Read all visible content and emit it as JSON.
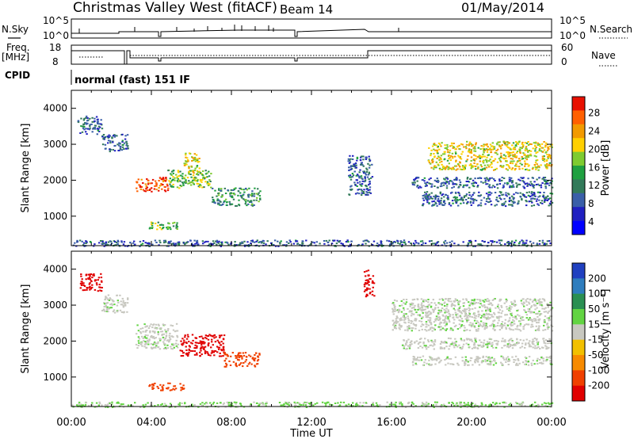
{
  "header": {
    "station": "Christmas Valley West (fitACF)",
    "beam": "Beam 14",
    "date": "01/May/2014"
  },
  "summary_labels": {
    "nsky": "N.Sky",
    "nsearch": "N.Search",
    "freq_line1": "Freq.",
    "freq_line2": "[MHz]",
    "nave": "Nave",
    "cpid": "CPID",
    "cpid_value": "normal (fast) 151 IF",
    "nsky_ticks": [
      "10^5",
      "10^0"
    ],
    "nsearch_ticks": [
      "10^5",
      "10^0"
    ],
    "freq_ticks": [
      "18",
      "8"
    ],
    "nave_ticks": [
      "60",
      "0"
    ]
  },
  "chart_data": [
    {
      "type": "heatmap",
      "name": "power",
      "xlabel": "",
      "ylabel": "Slant Range [km]",
      "x_ticks": [
        "00:00",
        "04:00",
        "08:00",
        "12:00",
        "16:00",
        "20:00",
        "00:00"
      ],
      "y_ticks": [
        "1000",
        "2000",
        "3000",
        "4000"
      ],
      "ylim": [
        180,
        4500
      ],
      "colorbar_label": "Power [dB]",
      "colorbar_ticks": [
        "28",
        "24",
        "20",
        "16",
        "12",
        "8",
        "4"
      ],
      "colorbar_colors": [
        "#e81000",
        "#ff6000",
        "#f29a00",
        "#ffd000",
        "#7ecb30",
        "#1fa040",
        "#327a5a",
        "#3a5fa8",
        "#2020c0",
        "#0000ff"
      ],
      "regions": [
        {
          "t0": 0.3,
          "t1": 1.5,
          "r0": 3300,
          "r1": 3800,
          "level": 8
        },
        {
          "t0": 1.5,
          "t1": 2.8,
          "r0": 2800,
          "r1": 3300,
          "level": 8
        },
        {
          "t0": 3.2,
          "t1": 4.8,
          "r0": 1700,
          "r1": 2100,
          "level": 28
        },
        {
          "t0": 4.8,
          "t1": 7.0,
          "r0": 1800,
          "r1": 2300,
          "level": 16
        },
        {
          "t0": 5.6,
          "t1": 6.4,
          "r0": 2200,
          "r1": 2800,
          "level": 20
        },
        {
          "t0": 7.0,
          "t1": 9.4,
          "r0": 1300,
          "r1": 1800,
          "level": 12
        },
        {
          "t0": 3.8,
          "t1": 5.3,
          "r0": 650,
          "r1": 850,
          "level": 16
        },
        {
          "t0": 13.8,
          "t1": 15.0,
          "r0": 1600,
          "r1": 2700,
          "level": 8
        },
        {
          "t0": 17.8,
          "t1": 24.0,
          "r0": 2300,
          "r1": 3100,
          "level": 20
        },
        {
          "t0": 17.0,
          "t1": 24.0,
          "r0": 1800,
          "r1": 2100,
          "level": 8
        },
        {
          "t0": 17.5,
          "t1": 24.0,
          "r0": 1300,
          "r1": 1700,
          "level": 8
        },
        {
          "t0": 0.0,
          "t1": 24.0,
          "r0": 180,
          "r1": 350,
          "level": 8
        }
      ]
    },
    {
      "type": "heatmap",
      "name": "velocity",
      "xlabel": "Time UT",
      "ylabel": "Slant Range [km]",
      "x_ticks": [
        "00:00",
        "04:00",
        "08:00",
        "12:00",
        "16:00",
        "20:00",
        "00:00"
      ],
      "y_ticks": [
        "1000",
        "2000",
        "3000",
        "4000"
      ],
      "ylim": [
        180,
        4500
      ],
      "colorbar_label": "Velocity [m s⁻¹]",
      "colorbar_ticks": [
        "200",
        "100",
        "50",
        "15",
        "-15",
        "-50",
        "-100",
        "-200"
      ],
      "colorbar_colors": [
        "#2040c0",
        "#2e7dbe",
        "#2a8f52",
        "#62d442",
        "#c8c8c0",
        "#f2c000",
        "#f78a00",
        "#f04000",
        "#e00000"
      ],
      "regions": [
        {
          "t0": 0.4,
          "t1": 1.5,
          "r0": 3400,
          "r1": 3900,
          "level": -200
        },
        {
          "t0": 1.5,
          "t1": 2.8,
          "r0": 2800,
          "r1": 3300,
          "level": 0
        },
        {
          "t0": 3.2,
          "t1": 5.3,
          "r0": 1800,
          "r1": 2500,
          "level": 0
        },
        {
          "t0": 5.4,
          "t1": 7.6,
          "r0": 1600,
          "r1": 2200,
          "level": -200
        },
        {
          "t0": 7.6,
          "t1": 9.4,
          "r0": 1300,
          "r1": 1700,
          "level": -100
        },
        {
          "t0": 3.8,
          "t1": 5.6,
          "r0": 650,
          "r1": 850,
          "level": -100
        },
        {
          "t0": 14.6,
          "t1": 15.1,
          "r0": 3200,
          "r1": 4000,
          "level": -200
        },
        {
          "t0": 16.0,
          "t1": 24.0,
          "r0": 2300,
          "r1": 3200,
          "level": 0
        },
        {
          "t0": 16.5,
          "t1": 24.0,
          "r0": 1800,
          "r1": 2100,
          "level": 0
        },
        {
          "t0": 17.0,
          "t1": 24.0,
          "r0": 1350,
          "r1": 1600,
          "level": 0
        },
        {
          "t0": 0.0,
          "t1": 24.0,
          "r0": 180,
          "r1": 320,
          "level": 15
        }
      ]
    }
  ]
}
